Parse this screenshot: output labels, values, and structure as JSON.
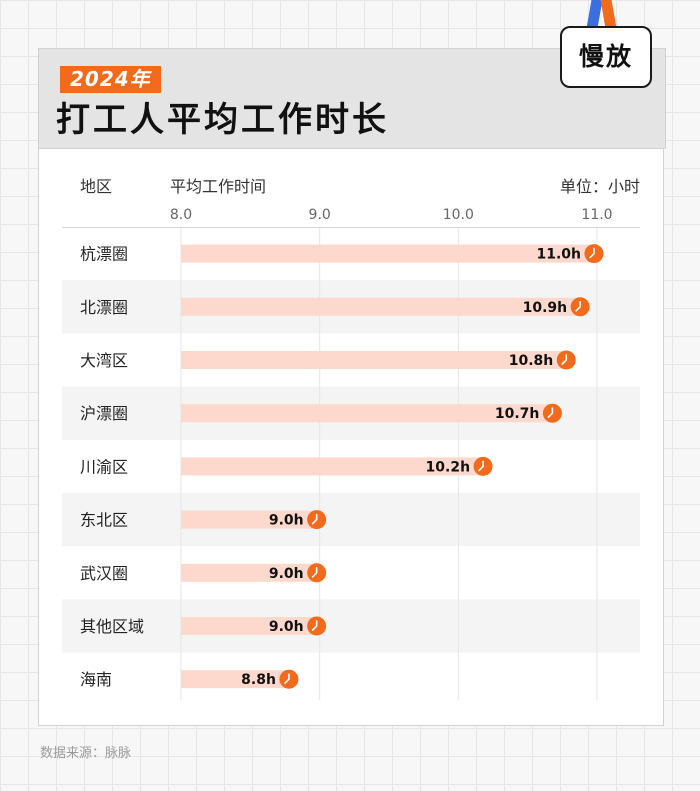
{
  "header": {
    "year_badge": "2024年",
    "title": "打工人平均工作时长",
    "logo": "慢放"
  },
  "columns": {
    "region": "地区",
    "metric": "平均工作时间",
    "unit": "单位：小时"
  },
  "source": "数据来源：脉脉",
  "colors": {
    "accent": "#f26a1b",
    "bar": "#fcd9cc",
    "row_alt": "#f4f4f4"
  },
  "icons": {
    "clock": "clock-icon"
  },
  "chart_data": {
    "type": "bar",
    "orientation": "horizontal",
    "title": "打工人平均工作时长",
    "xlabel": "平均工作时间",
    "ylabel": "地区",
    "unit": "单位：小时",
    "xlim": [
      8.0,
      11.0
    ],
    "ticks": [
      "8.0",
      "9.0",
      "10.0",
      "11.0"
    ],
    "tick_values": [
      8.0,
      9.0,
      10.0,
      11.0
    ],
    "categories": [
      "杭漂圈",
      "北漂圈",
      "大湾区",
      "沪漂圈",
      "川渝区",
      "东北区",
      "武汉圈",
      "其他区域",
      "海南"
    ],
    "values": [
      11.0,
      10.9,
      10.8,
      10.7,
      10.2,
      9.0,
      9.0,
      9.0,
      8.8
    ],
    "labels": [
      "11.0h",
      "10.9h",
      "10.8h",
      "10.7h",
      "10.2h",
      "9.0h",
      "9.0h",
      "9.0h",
      "8.8h"
    ],
    "grid": true
  }
}
